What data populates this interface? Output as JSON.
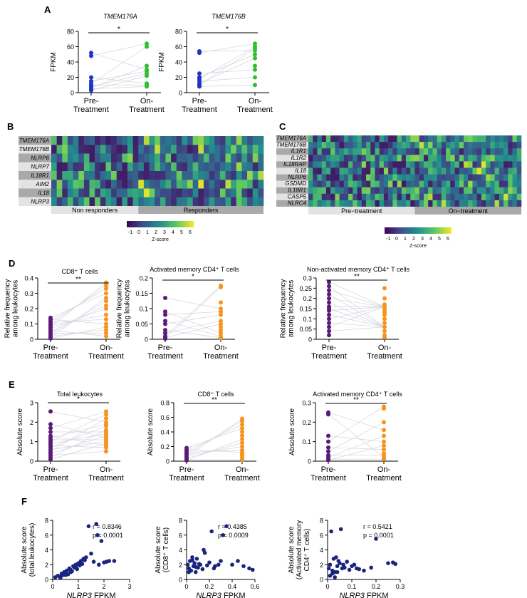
{
  "palette": {
    "pre_blue": "#1f33c6",
    "on_green": "#2fbf2f",
    "pre_purple": "#5b1a78",
    "on_orange": "#f7941d",
    "scatter_navy": "#1a237e",
    "line_gray": "#d0d4dc",
    "band_light": "#e3e3e3",
    "band_dark": "#a9a9a9",
    "viridis": [
      "#440154",
      "#3b528b",
      "#21918c",
      "#5ec962",
      "#fde725"
    ]
  },
  "panels": {
    "A": {
      "letter": "A",
      "charts": [
        {
          "type": "paired-dot",
          "title": "TMEM176A",
          "title_italic": true,
          "ylabel": "FPKM",
          "yticks": [
            0,
            20,
            40,
            60,
            80
          ],
          "ylim": [
            0,
            80
          ],
          "categories": [
            "Pre-\nTreatment",
            "On-\nTreatment"
          ],
          "pre": [
            52,
            48,
            20,
            15,
            12,
            10,
            8,
            6,
            5,
            3
          ],
          "on": [
            64,
            60,
            35,
            30,
            28,
            25,
            22,
            12,
            10,
            8
          ],
          "significance": "*",
          "colors": [
            "pre_blue",
            "on_green"
          ]
        },
        {
          "type": "paired-dot",
          "title": "TMEM176B",
          "title_italic": true,
          "ylabel": "FPKM",
          "yticks": [
            0,
            20,
            40,
            60,
            80
          ],
          "ylim": [
            0,
            80
          ],
          "categories": [
            "Pre-\nTreatment",
            "On-\nTreatment"
          ],
          "pre": [
            54,
            52,
            25,
            20,
            18,
            15,
            12,
            10,
            8
          ],
          "on": [
            64,
            60,
            58,
            55,
            50,
            45,
            35,
            30,
            20,
            10
          ],
          "significance": "*",
          "colors": [
            "pre_blue",
            "on_green"
          ]
        }
      ]
    },
    "B": {
      "letter": "B",
      "type": "heatmap",
      "rows": [
        "TMEM176A",
        "TMEM176B",
        "NLRP6",
        "NLRP7",
        "IL18R1",
        "AIM2",
        "IL18",
        "NLRP3"
      ],
      "groups": [
        "Non responders",
        "Responders"
      ],
      "group_columns": [
        16,
        23
      ],
      "legend_title": "Z-score",
      "legend_ticks": [
        "-1",
        "0",
        "1",
        "2",
        "3",
        "4",
        "5",
        "6"
      ]
    },
    "C": {
      "letter": "C",
      "type": "heatmap",
      "rows": [
        "TMEM176A",
        "TMEM176B",
        "IL1R1",
        "IL1R2",
        "IL18RAP",
        "IL18",
        "NLRP6",
        "GSDMD",
        "IL18R1",
        "CASP5",
        "NLRC4"
      ],
      "groups": [
        "Pre−treatment",
        "On−treatment"
      ],
      "group_columns": [
        24,
        24
      ],
      "legend_title": "Z-score",
      "legend_ticks": [
        "-1",
        "0",
        "1",
        "2",
        "3",
        "4",
        "5",
        "6"
      ]
    },
    "D": {
      "letter": "D",
      "charts": [
        {
          "type": "paired-dot",
          "title": "CD8⁺ T cells",
          "ylabel": "Relative frequency\namong leukocytes",
          "yticks": [
            0,
            0.1,
            0.2,
            0.3,
            0.4
          ],
          "ylim": [
            0,
            0.4
          ],
          "categories": [
            "Pre-\nTreatment",
            "On-\nTreatment"
          ],
          "pre": [
            0.14,
            0.13,
            0.12,
            0.11,
            0.1,
            0.09,
            0.08,
            0.07,
            0.06,
            0.05,
            0.04,
            0.03,
            0.02,
            0.01,
            0.005
          ],
          "on": [
            0.37,
            0.35,
            0.33,
            0.3,
            0.27,
            0.25,
            0.22,
            0.2,
            0.16,
            0.13,
            0.1,
            0.08,
            0.06,
            0.04,
            0.02
          ],
          "significance": "**",
          "colors": [
            "pre_purple",
            "on_orange"
          ]
        },
        {
          "type": "paired-dot",
          "title": "Activated memory CD4⁺ T cells",
          "ylabel": "Relative frequency\namong leukocytes",
          "yticks": [
            0,
            0.05,
            0.1,
            0.15,
            0.2
          ],
          "ylim": [
            0,
            0.2
          ],
          "categories": [
            "Pre-\nTreatment",
            "On-\nTreatment"
          ],
          "pre": [
            0.135,
            0.09,
            0.08,
            0.06,
            0.05,
            0.03,
            0.02,
            0.01,
            0.005,
            0.002
          ],
          "on": [
            0.175,
            0.17,
            0.12,
            0.1,
            0.09,
            0.08,
            0.06,
            0.05,
            0.04,
            0.03,
            0.02,
            0.01,
            0.005
          ],
          "significance": "*",
          "colors": [
            "pre_purple",
            "on_orange"
          ]
        },
        {
          "type": "paired-dot",
          "title": "Non-activated memory  CD4⁺ T cells",
          "ylabel": "Relative frequency\namong leukocytes",
          "yticks": [
            0,
            0.05,
            0.1,
            0.15,
            0.2,
            0.25,
            0.3
          ],
          "ylim": [
            0,
            0.3
          ],
          "categories": [
            "Pre-\nTreatment",
            "On-\nTreatment"
          ],
          "pre": [
            0.28,
            0.26,
            0.24,
            0.22,
            0.2,
            0.18,
            0.16,
            0.15,
            0.14,
            0.12,
            0.1,
            0.08,
            0.06,
            0.04,
            0.02
          ],
          "on": [
            0.25,
            0.2,
            0.17,
            0.16,
            0.15,
            0.14,
            0.13,
            0.12,
            0.1,
            0.08,
            0.06,
            0.04,
            0.02,
            0.01
          ],
          "significance": "**",
          "colors": [
            "pre_purple",
            "on_orange"
          ]
        }
      ]
    },
    "E": {
      "letter": "E",
      "charts": [
        {
          "type": "paired-dot",
          "title": "Total leukocytes",
          "ylabel": "Absolute score",
          "yticks": [
            0,
            1,
            2,
            3
          ],
          "ylim": [
            0,
            3
          ],
          "categories": [
            "Pre-\nTreatment",
            "On-\nTreatment"
          ],
          "pre": [
            2.55,
            1.9,
            1.7,
            1.5,
            1.3,
            1.2,
            1.1,
            1.0,
            0.9,
            0.8,
            0.7,
            0.6,
            0.5,
            0.4,
            0.3,
            0.2,
            0.1
          ],
          "on": [
            2.55,
            2.4,
            2.2,
            2.0,
            1.9,
            1.8,
            1.6,
            1.5,
            1.4,
            1.3,
            1.2,
            1.1,
            1.0,
            0.9,
            0.8,
            0.7,
            0.5
          ],
          "significance": "*",
          "colors": [
            "pre_purple",
            "on_orange"
          ]
        },
        {
          "type": "paired-dot",
          "title": "CD8⁺ T cells",
          "ylabel": "Absolute score",
          "yticks": [
            0,
            0.2,
            0.4,
            0.6,
            0.8
          ],
          "ylim": [
            0,
            0.8
          ],
          "categories": [
            "Pre-\nTreatment",
            "On-\nTreatment"
          ],
          "pre": [
            0.18,
            0.16,
            0.14,
            0.12,
            0.1,
            0.08,
            0.06,
            0.04,
            0.02,
            0.01
          ],
          "on": [
            0.58,
            0.55,
            0.5,
            0.45,
            0.4,
            0.35,
            0.3,
            0.25,
            0.2,
            0.15,
            0.12,
            0.1,
            0.08,
            0.05,
            0.02
          ],
          "significance": "**",
          "colors": [
            "pre_purple",
            "on_orange"
          ]
        },
        {
          "type": "paired-dot",
          "title": "Activated memory CD4⁺ T cells",
          "ylabel": "Absolute score",
          "yticks": [
            0,
            0.1,
            0.2,
            0.3
          ],
          "ylim": [
            0,
            0.3
          ],
          "categories": [
            "Pre-\nTreatment",
            "On-\nTreatment"
          ],
          "pre": [
            0.25,
            0.24,
            0.13,
            0.1,
            0.07,
            0.05,
            0.03,
            0.02,
            0.01,
            0.005
          ],
          "on": [
            0.28,
            0.27,
            0.2,
            0.16,
            0.13,
            0.1,
            0.08,
            0.06,
            0.04,
            0.03,
            0.02,
            0.01
          ],
          "significance": "**",
          "colors": [
            "pre_purple",
            "on_orange"
          ]
        }
      ]
    },
    "F": {
      "letter": "F",
      "charts": [
        {
          "type": "scatter",
          "ylabel": "Absolute score\n(total leukocytes)",
          "xlabel_gene": "NLRP3",
          "xlabel_unit": " FPKM",
          "xticks": [
            0,
            1,
            2,
            3
          ],
          "xlim": [
            0,
            3
          ],
          "yticks": [
            0,
            2,
            4,
            6,
            8
          ],
          "ylim": [
            0,
            8
          ],
          "annotation": [
            "r = 0.8346",
            "p = 0.0001"
          ],
          "x": [
            0.1,
            0.2,
            0.3,
            0.35,
            0.4,
            0.45,
            0.5,
            0.55,
            0.6,
            0.65,
            0.7,
            0.75,
            0.8,
            0.85,
            0.9,
            0.95,
            1.0,
            1.05,
            1.1,
            1.15,
            1.2,
            1.25,
            1.3,
            1.4,
            1.5,
            1.6,
            1.7,
            1.75,
            1.8,
            1.9,
            2.0,
            2.1,
            2.2,
            2.4,
            0.3,
            0.5,
            0.7,
            0.9,
            1.1
          ],
          "y": [
            0.3,
            0.5,
            0.4,
            0.8,
            0.6,
            1.0,
            0.9,
            1.2,
            0.7,
            1.5,
            1.3,
            1.1,
            1.8,
            1.6,
            2.0,
            1.4,
            2.2,
            1.9,
            2.5,
            2.1,
            2.8,
            2.6,
            3.0,
            7.2,
            3.5,
            2.4,
            7.5,
            6.0,
            2.0,
            5.2,
            2.3,
            2.4,
            2.5,
            2.5,
            0.2,
            0.6,
            1.0,
            1.7,
            2.3
          ],
          "color": "scatter_navy"
        },
        {
          "type": "scatter",
          "ylabel": "Absolute score\n(CD8⁺ T cells)",
          "xlabel_gene": "NLRP3",
          "xlabel_unit": " FPKM",
          "xticks": [
            0,
            0.2,
            0.4,
            0.6
          ],
          "xlim": [
            0,
            0.6
          ],
          "yticks": [
            0,
            2,
            4,
            6,
            8
          ],
          "ylim": [
            0,
            8
          ],
          "annotation": [
            "r = 0.4385",
            "p = 0.0009"
          ],
          "x": [
            0.01,
            0.02,
            0.03,
            0.04,
            0.05,
            0.06,
            0.07,
            0.08,
            0.09,
            0.1,
            0.12,
            0.14,
            0.15,
            0.16,
            0.18,
            0.2,
            0.22,
            0.24,
            0.25,
            0.28,
            0.3,
            0.32,
            0.35,
            0.4,
            0.45,
            0.5,
            0.55,
            0.58,
            0.02,
            0.05,
            0.08,
            0.11
          ],
          "y": [
            2.0,
            1.5,
            2.5,
            1.2,
            3.0,
            1.8,
            2.2,
            1.0,
            2.8,
            1.6,
            2.0,
            1.4,
            4.0,
            3.6,
            1.9,
            2.3,
            6.5,
            1.5,
            1.8,
            2.0,
            2.5,
            6.0,
            7.2,
            2.0,
            2.5,
            1.8,
            1.5,
            1.3,
            1.0,
            2.6,
            1.7,
            2.1
          ],
          "color": "scatter_navy"
        },
        {
          "type": "scatter",
          "ylabel": "Absolute score\n(Activated memory\nCD4⁺ T cells)",
          "xlabel_gene": "NLRP3",
          "xlabel_unit": " FPKM",
          "xticks": [
            0,
            0.1,
            0.2,
            0.3
          ],
          "xlim": [
            0,
            0.3
          ],
          "yticks": [
            0,
            2,
            4,
            6,
            8
          ],
          "ylim": [
            0,
            8
          ],
          "annotation": [
            "r = 0.5421",
            "p = 0.0001"
          ],
          "x": [
            0.005,
            0.01,
            0.015,
            0.02,
            0.025,
            0.03,
            0.035,
            0.04,
            0.045,
            0.05,
            0.055,
            0.06,
            0.065,
            0.07,
            0.08,
            0.09,
            0.1,
            0.11,
            0.12,
            0.13,
            0.15,
            0.18,
            0.2,
            0.25,
            0.27,
            0.28,
            0.01,
            0.02,
            0.03,
            0.04
          ],
          "y": [
            1.5,
            2.0,
            6.5,
            1.2,
            2.8,
            1.0,
            3.0,
            1.8,
            2.5,
            2.2,
            6.8,
            1.5,
            2.0,
            1.6,
            2.4,
            1.3,
            1.8,
            2.0,
            1.5,
            1.4,
            1.2,
            1.6,
            5.5,
            2.2,
            2.3,
            2.1,
            0.5,
            0.8,
            0.3,
            1.0
          ],
          "color": "scatter_navy"
        }
      ]
    }
  }
}
